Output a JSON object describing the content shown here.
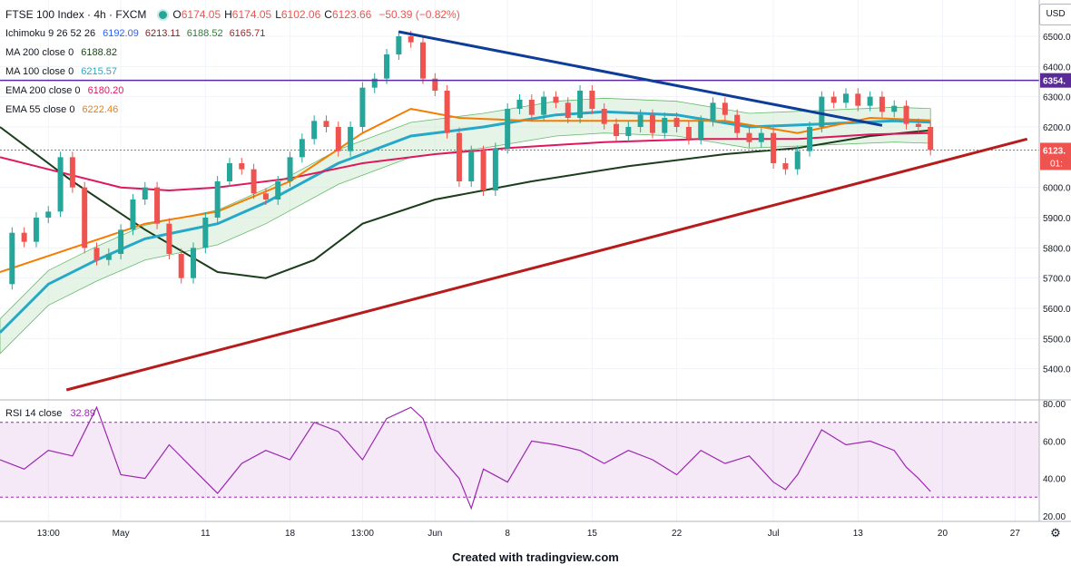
{
  "legend": {
    "symbol": "FTSE 100 Index · 4h · FXCM",
    "ohlc": [
      {
        "k": "O",
        "v": "6174.05"
      },
      {
        "k": "H",
        "v": "6174.05"
      },
      {
        "k": "L",
        "v": "6102.06"
      },
      {
        "k": "C",
        "v": "6123.66"
      }
    ],
    "change": "−50.39 (−0.82%)",
    "indicators": [
      {
        "name": "Ichimoku 9 26 52 26",
        "values": [
          {
            "v": "6192.09",
            "color": "#2962ff"
          },
          {
            "v": "6213.11",
            "color": "#8b1a1a"
          },
          {
            "v": "6188.52",
            "color": "#2e7d32"
          },
          {
            "v": "6165.71",
            "color": "#b71c1c"
          }
        ]
      },
      {
        "name": "MA 200 close 0",
        "values": [
          {
            "v": "6188.82",
            "color": "#1b3d1b"
          }
        ]
      },
      {
        "name": "MA 100 close 0",
        "values": [
          {
            "v": "6215.57",
            "color": "#26a8c9"
          }
        ]
      },
      {
        "name": "EMA 200 close 0",
        "values": [
          {
            "v": "6180.20",
            "color": "#e0175c"
          }
        ]
      },
      {
        "name": "EMA 55 close 0",
        "values": [
          {
            "v": "6222.46",
            "color": "#f57c00"
          }
        ]
      }
    ],
    "rsi": {
      "name": "RSI 14 close",
      "value": "32.89",
      "color": "#9c27b0"
    }
  },
  "axis": {
    "currency": "USD",
    "price_ticks": [
      "6500.00",
      "6400.00",
      "6300.00",
      "6200.00",
      "6000.00",
      "5900.00",
      "5800.00",
      "5700.00",
      "5600.00",
      "5500.00",
      "5400.00"
    ],
    "rsi_ticks": [
      "80.00",
      "60.00",
      "40.00",
      "20.00"
    ],
    "time_labels": [
      "13:00",
      "May",
      "11",
      "18",
      "13:00",
      "Jun",
      "8",
      "15",
      "22",
      "Jul",
      "13",
      "20",
      "27"
    ],
    "price_tag_hline": "6354.",
    "price_tag_last": "6123.",
    "countdown": "01:"
  },
  "footer": "Created with tradingview.com",
  "chart_data": {
    "type": "line",
    "title": "FTSE 100 Index · 4h · FXCM",
    "time_labels": [
      "13:00",
      "May",
      "11",
      "18",
      "13:00",
      "Jun",
      "8",
      "15",
      "22",
      "Jul",
      "13",
      "20",
      "27"
    ],
    "price_ylim": [
      5300,
      6620
    ],
    "rsi_ylim": [
      17,
      82
    ],
    "close_path": [
      [
        0,
        5680
      ],
      [
        1,
        5850
      ],
      [
        2,
        5820
      ],
      [
        3,
        5900
      ],
      [
        4,
        5920
      ],
      [
        5,
        6100
      ],
      [
        6,
        6000
      ],
      [
        7,
        5800
      ],
      [
        8,
        5760
      ],
      [
        9,
        5780
      ],
      [
        10,
        5860
      ],
      [
        11,
        5960
      ],
      [
        12,
        6000
      ],
      [
        13,
        5880
      ],
      [
        14,
        5780
      ],
      [
        15,
        5700
      ],
      [
        16,
        5800
      ],
      [
        17,
        5900
      ],
      [
        18,
        6020
      ],
      [
        19,
        6080
      ],
      [
        20,
        6060
      ],
      [
        21,
        5980
      ],
      [
        22,
        5960
      ],
      [
        23,
        6020
      ],
      [
        24,
        6100
      ],
      [
        25,
        6160
      ],
      [
        26,
        6220
      ],
      [
        27,
        6200
      ],
      [
        28,
        6120
      ],
      [
        29,
        6200
      ],
      [
        30,
        6330
      ],
      [
        31,
        6360
      ],
      [
        32,
        6440
      ],
      [
        33,
        6500
      ],
      [
        34,
        6480
      ],
      [
        35,
        6360
      ],
      [
        36,
        6320
      ],
      [
        37,
        6180
      ],
      [
        38,
        6020
      ],
      [
        39,
        6120
      ],
      [
        40,
        5990
      ],
      [
        41,
        6130
      ],
      [
        42,
        6260
      ],
      [
        43,
        6290
      ],
      [
        44,
        6240
      ],
      [
        45,
        6300
      ],
      [
        46,
        6280
      ],
      [
        47,
        6230
      ],
      [
        48,
        6320
      ],
      [
        49,
        6260
      ],
      [
        50,
        6210
      ],
      [
        51,
        6170
      ],
      [
        52,
        6200
      ],
      [
        53,
        6240
      ],
      [
        54,
        6180
      ],
      [
        55,
        6230
      ],
      [
        56,
        6200
      ],
      [
        57,
        6160
      ],
      [
        58,
        6220
      ],
      [
        59,
        6280
      ],
      [
        60,
        6240
      ],
      [
        61,
        6180
      ],
      [
        62,
        6150
      ],
      [
        63,
        6180
      ],
      [
        64,
        6080
      ],
      [
        65,
        6060
      ],
      [
        66,
        6120
      ],
      [
        67,
        6200
      ],
      [
        68,
        6300
      ],
      [
        69,
        6280
      ],
      [
        70,
        6310
      ],
      [
        71,
        6270
      ],
      [
        72,
        6300
      ],
      [
        73,
        6250
      ],
      [
        74,
        6270
      ],
      [
        75,
        6210
      ],
      [
        76,
        6200
      ],
      [
        77,
        6124
      ]
    ],
    "series": [
      {
        "name": "MA 200 close 0",
        "color": "#1b3d1b",
        "values": [
          [
            0,
            6200
          ],
          [
            6,
            6020
          ],
          [
            12,
            5860
          ],
          [
            18,
            5720
          ],
          [
            22,
            5700
          ],
          [
            26,
            5760
          ],
          [
            30,
            5880
          ],
          [
            36,
            5960
          ],
          [
            44,
            6020
          ],
          [
            52,
            6070
          ],
          [
            60,
            6110
          ],
          [
            66,
            6130
          ],
          [
            72,
            6170
          ],
          [
            77,
            6189
          ]
        ]
      },
      {
        "name": "MA 100 close 0",
        "color": "#26a8c9",
        "values": [
          [
            0,
            5520
          ],
          [
            4,
            5680
          ],
          [
            8,
            5760
          ],
          [
            12,
            5830
          ],
          [
            18,
            5880
          ],
          [
            22,
            5950
          ],
          [
            28,
            6080
          ],
          [
            34,
            6170
          ],
          [
            40,
            6200
          ],
          [
            46,
            6240
          ],
          [
            50,
            6250
          ],
          [
            56,
            6240
          ],
          [
            62,
            6200
          ],
          [
            68,
            6210
          ],
          [
            74,
            6220
          ],
          [
            77,
            6216
          ]
        ]
      },
      {
        "name": "EMA 200 close 0",
        "color": "#e0175c",
        "values": [
          [
            0,
            6100
          ],
          [
            4,
            6060
          ],
          [
            10,
            6000
          ],
          [
            14,
            5990
          ],
          [
            18,
            6000
          ],
          [
            24,
            6030
          ],
          [
            30,
            6080
          ],
          [
            36,
            6110
          ],
          [
            42,
            6130
          ],
          [
            50,
            6150
          ],
          [
            58,
            6160
          ],
          [
            66,
            6160
          ],
          [
            72,
            6175
          ],
          [
            77,
            6180
          ]
        ]
      },
      {
        "name": "EMA 55 close 0",
        "color": "#f57c00",
        "values": [
          [
            0,
            5720
          ],
          [
            6,
            5800
          ],
          [
            12,
            5880
          ],
          [
            18,
            5920
          ],
          [
            24,
            6020
          ],
          [
            30,
            6180
          ],
          [
            34,
            6260
          ],
          [
            38,
            6230
          ],
          [
            44,
            6220
          ],
          [
            52,
            6220
          ],
          [
            60,
            6220
          ],
          [
            66,
            6180
          ],
          [
            72,
            6230
          ],
          [
            77,
            6222
          ]
        ]
      }
    ],
    "trendlines": [
      {
        "name": "Descending trendline",
        "color": "#0d3c99",
        "from": [
          33,
          6515
        ],
        "to": [
          73,
          6205
        ]
      },
      {
        "name": "Ascending trendline",
        "color": "#b71c1c",
        "from": [
          5.5,
          5330
        ],
        "to": [
          85,
          6160
        ]
      }
    ],
    "hline": {
      "value": 6354,
      "color": "#5b2a99"
    },
    "last_price_line": {
      "value": 6123.66,
      "color": "#ef5350"
    },
    "rsi": [
      [
        0,
        50
      ],
      [
        2,
        45
      ],
      [
        4,
        55
      ],
      [
        6,
        52
      ],
      [
        8,
        78
      ],
      [
        10,
        42
      ],
      [
        12,
        40
      ],
      [
        14,
        58
      ],
      [
        16,
        45
      ],
      [
        18,
        32
      ],
      [
        20,
        48
      ],
      [
        22,
        55
      ],
      [
        24,
        50
      ],
      [
        26,
        70
      ],
      [
        28,
        65
      ],
      [
        30,
        50
      ],
      [
        32,
        72
      ],
      [
        34,
        78
      ],
      [
        35,
        72
      ],
      [
        36,
        55
      ],
      [
        38,
        40
      ],
      [
        39,
        24
      ],
      [
        40,
        45
      ],
      [
        42,
        38
      ],
      [
        44,
        60
      ],
      [
        46,
        58
      ],
      [
        48,
        55
      ],
      [
        50,
        48
      ],
      [
        52,
        55
      ],
      [
        54,
        50
      ],
      [
        56,
        42
      ],
      [
        58,
        55
      ],
      [
        60,
        48
      ],
      [
        62,
        52
      ],
      [
        64,
        38
      ],
      [
        65,
        34
      ],
      [
        66,
        42
      ],
      [
        68,
        66
      ],
      [
        70,
        58
      ],
      [
        72,
        60
      ],
      [
        74,
        55
      ],
      [
        75,
        46
      ],
      [
        76,
        40
      ],
      [
        77,
        33
      ]
    ]
  }
}
